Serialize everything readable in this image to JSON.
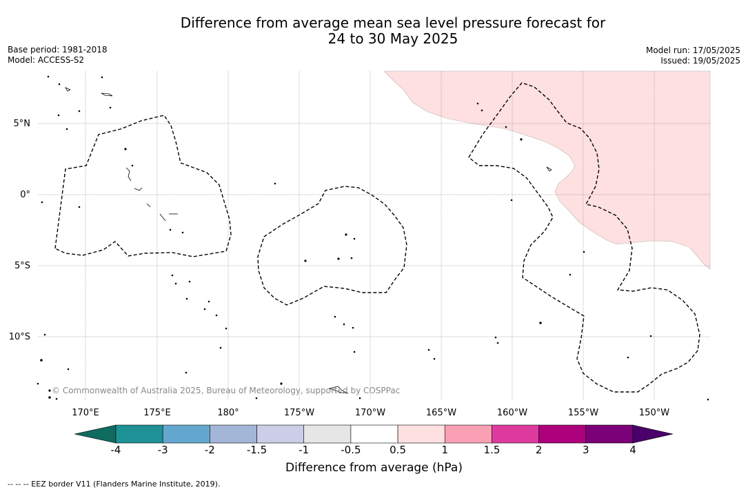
{
  "title": {
    "line1": "Difference from average mean sea level pressure forecast for",
    "line2": "24 to 30 May 2025"
  },
  "meta": {
    "base_period": "Base period: 1981-2018",
    "model": "Model: ACCESS-S2",
    "model_run": "Model run: 17/05/2025",
    "issued": "Issued: 19/05/2025"
  },
  "map": {
    "lon_labels": [
      "170°E",
      "175°E",
      "180°",
      "175°W",
      "170°W",
      "165°W",
      "160°W",
      "155°W",
      "150°W"
    ],
    "lat_labels": [
      "5°N",
      "0°",
      "5°S",
      "10°S"
    ],
    "copyright": "© Commonwealth of Australia 2025, Bureau of Meteorology, supported by COSPPac",
    "anomaly_fill_color": "#fde0df"
  },
  "colorbar": {
    "ticks": [
      "-4",
      "-3",
      "-2",
      "-1.5",
      "-1",
      "-0.5",
      "0.5",
      "1",
      "1.5",
      "2",
      "3",
      "4"
    ],
    "colors": [
      "#0f6b60",
      "#1e9196",
      "#64a8cf",
      "#a3b6d8",
      "#cccde7",
      "#e6e6e6",
      "#ffffff",
      "#fde0df",
      "#f9a0b4",
      "#dd3c9e",
      "#ad007c",
      "#7a0177",
      "#49006a"
    ],
    "label": "Difference from average (hPa)"
  },
  "footer": "--  --  -- EEZ border V11 (Flanders Marine Institute, 2019)."
}
